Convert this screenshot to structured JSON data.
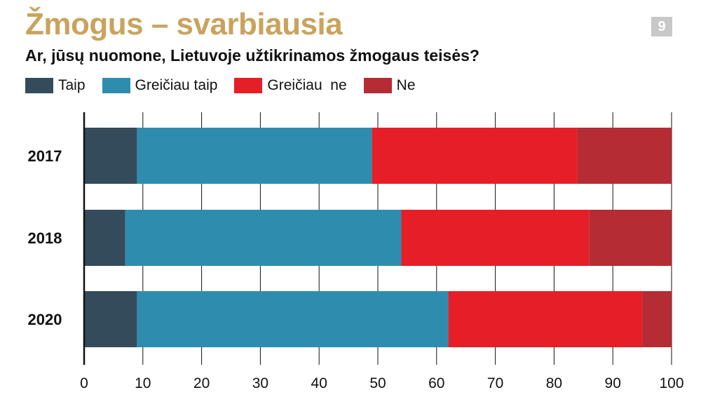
{
  "title": "Žmogus – svarbiausia",
  "page_number": "9",
  "subtitle": "Ar, jūsų nuomone, Lietuvoje užtikrinamos žmogaus teisės?",
  "colors": {
    "title": "#c9a35e",
    "Taip": "#344b5b",
    "Greičiau taip": "#2e8daf",
    "Greičiau  ne": "#e61e27",
    "Ne": "#b52c34"
  },
  "chart_data": {
    "type": "bar",
    "orientation": "horizontal",
    "stacked": true,
    "categories": [
      "2017",
      "2018",
      "2020"
    ],
    "series": [
      {
        "name": "Taip",
        "values": [
          9,
          7,
          9
        ]
      },
      {
        "name": "Greičiau taip",
        "values": [
          40,
          47,
          53
        ]
      },
      {
        "name": "Greičiau  ne",
        "values": [
          35,
          32,
          33
        ]
      },
      {
        "name": "Ne",
        "values": [
          16,
          14,
          5
        ]
      }
    ],
    "xlim": [
      0,
      100
    ],
    "xticks": [
      "0",
      "10",
      "20",
      "30",
      "40",
      "50",
      "60",
      "70",
      "80",
      "90",
      "100"
    ],
    "grid": "vertical",
    "legend_position": "top"
  }
}
